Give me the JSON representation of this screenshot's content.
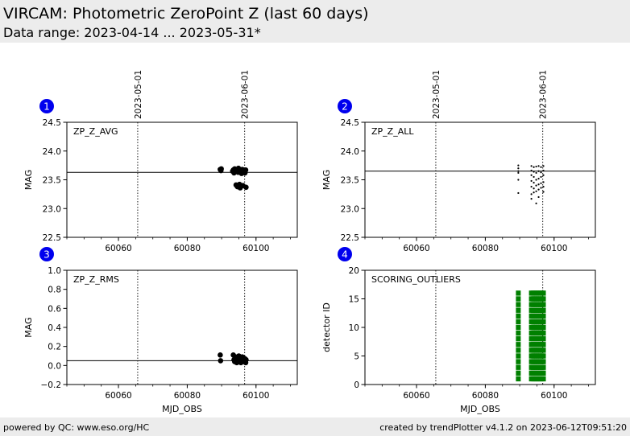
{
  "header": {
    "title": "VIRCAM: Photometric ZeroPoint Z (last 60 days)",
    "subtitle": "Data range: 2023-04-14 ... 2023-05-31*"
  },
  "footer": {
    "left": "powered by QC: www.eso.org/HC",
    "right": "created by trendPlotter v4.1.2 on 2023-06-12T09:51:20"
  },
  "colors": {
    "badge": "#0000ee",
    "outliers": "#008000",
    "points": "#000000"
  },
  "chart_data": [
    {
      "id": 1,
      "badge": "1",
      "type": "scatter",
      "label": "ZP_Z_AVG",
      "xlabel": "",
      "ylabel": "MAG",
      "xlim": [
        60045,
        60112
      ],
      "ylim": [
        22.5,
        24.5
      ],
      "xticks": [
        60060,
        60080,
        60100
      ],
      "yticks": [
        22.5,
        23.0,
        23.5,
        24.0,
        24.5
      ],
      "ytick_labels": [
        "22.5",
        "23.0",
        "23.5",
        "24.0",
        "24.5"
      ],
      "date_markers": [
        {
          "x": 60065.6,
          "label": "2023-05-01"
        },
        {
          "x": 60096.7,
          "label": "2023-06-01"
        }
      ],
      "hline": 23.63,
      "marker": "dot",
      "points": [
        [
          60089.6,
          23.68
        ],
        [
          60089.8,
          23.66
        ],
        [
          60089.9,
          23.69
        ],
        [
          60093.4,
          23.67
        ],
        [
          60093.6,
          23.62
        ],
        [
          60093.8,
          23.69
        ],
        [
          60094.0,
          23.64
        ],
        [
          60094.2,
          23.41
        ],
        [
          60094.4,
          23.67
        ],
        [
          60094.6,
          23.38
        ],
        [
          60094.8,
          23.63
        ],
        [
          60095.0,
          23.66
        ],
        [
          60095.2,
          23.42
        ],
        [
          60095.4,
          23.36
        ],
        [
          60095.6,
          23.65
        ],
        [
          60095.8,
          23.61
        ],
        [
          60096.0,
          23.68
        ],
        [
          60096.2,
          23.4
        ],
        [
          60096.4,
          23.64
        ],
        [
          60096.6,
          23.66
        ],
        [
          60096.8,
          23.62
        ],
        [
          60097.0,
          23.67
        ],
        [
          60097.1,
          23.37
        ],
        [
          60093.2,
          23.65
        ],
        [
          60094.9,
          23.7
        ],
        [
          60096.1,
          23.63
        ]
      ]
    },
    {
      "id": 2,
      "badge": "2",
      "type": "scatter",
      "label": "ZP_Z_ALL",
      "xlabel": "",
      "ylabel": "MAG",
      "xlim": [
        60045,
        60112
      ],
      "ylim": [
        22.5,
        24.5
      ],
      "xticks": [
        60060,
        60080,
        60100
      ],
      "yticks": [
        22.5,
        23.0,
        23.5,
        24.0,
        24.5
      ],
      "ytick_labels": [
        "22.5",
        "23.0",
        "23.5",
        "24.0",
        "24.5"
      ],
      "date_markers": [
        {
          "x": 60065.6,
          "label": "2023-05-01"
        },
        {
          "x": 60096.7,
          "label": "2023-06-01"
        }
      ],
      "hline": 23.65,
      "marker": "small",
      "points": [
        [
          60089.6,
          23.75
        ],
        [
          60089.6,
          23.7
        ],
        [
          60089.6,
          23.65
        ],
        [
          60089.6,
          23.62
        ],
        [
          60089.6,
          23.5
        ],
        [
          60089.6,
          23.27
        ],
        [
          60093.4,
          23.74
        ],
        [
          60093.4,
          23.66
        ],
        [
          60093.4,
          23.58
        ],
        [
          60093.4,
          23.48
        ],
        [
          60093.4,
          23.38
        ],
        [
          60093.4,
          23.25
        ],
        [
          60093.4,
          23.17
        ],
        [
          60094.1,
          23.72
        ],
        [
          60094.1,
          23.64
        ],
        [
          60094.1,
          23.55
        ],
        [
          60094.1,
          23.45
        ],
        [
          60094.1,
          23.35
        ],
        [
          60094.1,
          23.28
        ],
        [
          60094.8,
          23.73
        ],
        [
          60094.8,
          23.62
        ],
        [
          60094.8,
          23.5
        ],
        [
          60094.8,
          23.4
        ],
        [
          60094.8,
          23.3
        ],
        [
          60094.8,
          23.09
        ],
        [
          60095.5,
          23.74
        ],
        [
          60095.5,
          23.65
        ],
        [
          60095.5,
          23.52
        ],
        [
          60095.5,
          23.42
        ],
        [
          60095.5,
          23.33
        ],
        [
          60095.5,
          23.2
        ],
        [
          60096.2,
          23.72
        ],
        [
          60096.2,
          23.63
        ],
        [
          60096.2,
          23.55
        ],
        [
          60096.2,
          23.44
        ],
        [
          60096.2,
          23.36
        ],
        [
          60096.9,
          23.74
        ],
        [
          60096.9,
          23.66
        ],
        [
          60096.9,
          23.58
        ],
        [
          60096.9,
          23.46
        ],
        [
          60096.9,
          23.38
        ],
        [
          60096.9,
          23.29
        ]
      ]
    },
    {
      "id": 3,
      "badge": "3",
      "type": "scatter",
      "label": "ZP_Z_RMS",
      "xlabel": "MJD_OBS",
      "ylabel": "MAG",
      "xlim": [
        60045,
        60112
      ],
      "ylim": [
        -0.2,
        1.0
      ],
      "xticks": [
        60060,
        60080,
        60100
      ],
      "yticks": [
        -0.2,
        0.0,
        0.2,
        0.4,
        0.6,
        0.8,
        1.0
      ],
      "ytick_labels": [
        "−0.2",
        "0.0",
        "0.2",
        "0.4",
        "0.6",
        "0.8",
        "1.0"
      ],
      "date_markers": [
        {
          "x": 60065.6,
          "label": "2023-05-01"
        },
        {
          "x": 60096.7,
          "label": "2023-06-01"
        }
      ],
      "hline": 0.05,
      "marker": "dot",
      "points": [
        [
          60089.6,
          0.11
        ],
        [
          60089.7,
          0.05
        ],
        [
          60093.4,
          0.11
        ],
        [
          60093.6,
          0.06
        ],
        [
          60093.8,
          0.04
        ],
        [
          60094.0,
          0.09
        ],
        [
          60094.2,
          0.05
        ],
        [
          60094.4,
          0.03
        ],
        [
          60094.6,
          0.08
        ],
        [
          60094.8,
          0.05
        ],
        [
          60095.0,
          0.1
        ],
        [
          60095.2,
          0.04
        ],
        [
          60095.4,
          0.07
        ],
        [
          60095.6,
          0.03
        ],
        [
          60095.8,
          0.06
        ],
        [
          60096.0,
          0.09
        ],
        [
          60096.2,
          0.04
        ],
        [
          60096.4,
          0.08
        ],
        [
          60096.6,
          0.05
        ],
        [
          60096.8,
          0.07
        ],
        [
          60097.0,
          0.03
        ],
        [
          60097.1,
          0.06
        ]
      ]
    },
    {
      "id": 4,
      "badge": "4",
      "type": "scatter",
      "label": "SCORING_OUTLIERS",
      "xlabel": "MJD_OBS",
      "ylabel": "detector ID",
      "xlim": [
        60045,
        60112
      ],
      "ylim": [
        0,
        20
      ],
      "xticks": [
        60060,
        60080,
        60100
      ],
      "yticks": [
        0,
        5,
        10,
        15,
        20
      ],
      "ytick_labels": [
        "0",
        "5",
        "10",
        "15",
        "20"
      ],
      "date_markers": [
        {
          "x": 60065.6,
          "label": "2023-05-01"
        },
        {
          "x": 60096.7,
          "label": "2023-06-01"
        }
      ],
      "marker": "square",
      "outlier_columns": [
        60089.6,
        60093.4,
        60093.9,
        60094.4,
        60094.9,
        60095.4,
        60095.9,
        60096.4,
        60096.9
      ],
      "detector_ids": [
        1,
        2,
        3,
        4,
        5,
        6,
        7,
        8,
        9,
        10,
        11,
        12,
        13,
        14,
        15,
        16
      ]
    }
  ]
}
